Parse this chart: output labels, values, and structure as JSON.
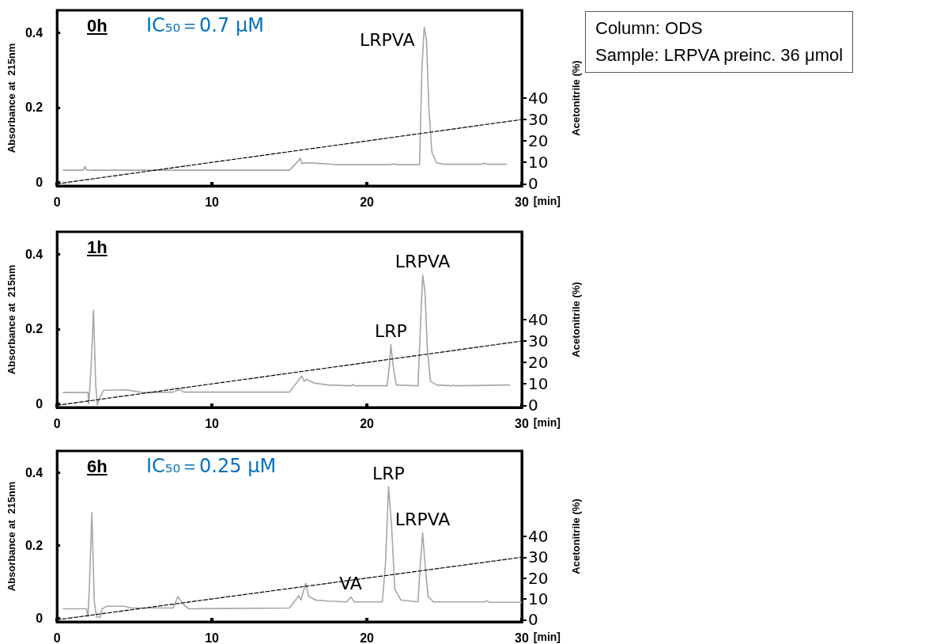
{
  "chart_data": [
    {
      "type": "line",
      "title": "0h",
      "ylabel": "Absorbance at  215nm",
      "y2label": "Acetonitrile (%)",
      "xlabel": "[min]",
      "xlim": [
        0,
        30
      ],
      "xticks": [
        0,
        10,
        20,
        30
      ],
      "ylim": [
        -0.01,
        0.46
      ],
      "yticks": [
        0,
        0.2,
        0.4
      ],
      "y2lim": [
        -1,
        81
      ],
      "y2ticks": [
        0,
        10,
        20,
        30,
        40
      ],
      "grid": false,
      "marker": "none",
      "series": [
        {
          "color": "#a6a6a6",
          "line_style": "solid",
          "x": [
            0.4,
            1.7,
            1.8,
            1.9,
            2.3,
            15.0,
            15.6,
            15.7,
            15.8,
            16.2,
            17,
            18,
            21.5,
            21.7,
            21.9,
            23.4,
            23.55,
            23.7,
            23.85,
            24.0,
            24.2,
            24.5,
            25,
            27.4,
            27.6,
            27.8,
            29.0
          ],
          "values": [
            0.032,
            0.032,
            0.042,
            0.033,
            0.032,
            0.032,
            0.058,
            0.064,
            0.05,
            0.052,
            0.05,
            0.047,
            0.047,
            0.049,
            0.047,
            0.047,
            0.3,
            0.415,
            0.38,
            0.2,
            0.08,
            0.052,
            0.048,
            0.048,
            0.051,
            0.048,
            0.048
          ]
        },
        {
          "color": "#000000",
          "line_style": "dashed",
          "axis": "y2",
          "x": [
            0,
            30
          ],
          "values": [
            0,
            30
          ]
        }
      ],
      "annotations": [
        {
          "text": "LRPVA",
          "x": 23.7,
          "y": 0.415
        },
        "IC₅₀＝0.7 μM"
      ]
    },
    {
      "type": "line",
      "title": "1h",
      "ylabel": "Absorbance at  215nm",
      "y2label": "Acetonitrile (%)",
      "xlabel": "[min]",
      "xlim": [
        0,
        30
      ],
      "xticks": [
        0,
        10,
        20,
        30
      ],
      "ylim": [
        -0.01,
        0.46
      ],
      "yticks": [
        0,
        0.2,
        0.4
      ],
      "y2lim": [
        -1,
        81
      ],
      "y2ticks": [
        0,
        10,
        20,
        30,
        40
      ],
      "grid": false,
      "marker": "none",
      "series": [
        {
          "color": "#a6a6a6",
          "line_style": "solid",
          "x": [
            0.4,
            2.0,
            2.05,
            2.2,
            2.35,
            2.5,
            2.6,
            2.8,
            3.0,
            4.5,
            5.5,
            7.5,
            7.9,
            8.2,
            15.0,
            15.8,
            15.95,
            16.1,
            16.6,
            17.5,
            19.0,
            19.1,
            19.2,
            21.3,
            21.45,
            21.55,
            21.7,
            21.9,
            23.3,
            23.45,
            23.6,
            23.75,
            23.9,
            24.1,
            24.5,
            25.5,
            25.6,
            25.7,
            29.2
          ],
          "values": [
            0.03,
            0.03,
            0.0,
            0.1,
            0.25,
            0.05,
            -0.003,
            0.02,
            0.036,
            0.037,
            0.03,
            0.031,
            0.038,
            0.031,
            0.031,
            0.074,
            0.06,
            0.065,
            0.055,
            0.05,
            0.048,
            0.052,
            0.048,
            0.048,
            0.1,
            0.158,
            0.1,
            0.05,
            0.048,
            0.2,
            0.345,
            0.3,
            0.15,
            0.06,
            0.05,
            0.048,
            0.05,
            0.048,
            0.05
          ]
        },
        {
          "color": "#000000",
          "line_style": "dashed",
          "axis": "y2",
          "x": [
            0,
            30
          ],
          "values": [
            0,
            30
          ]
        }
      ],
      "annotations": [
        {
          "text": "LRP",
          "x": 21.55,
          "y": 0.158
        },
        {
          "text": "LRPVA",
          "x": 23.6,
          "y": 0.345
        }
      ]
    },
    {
      "type": "line",
      "title": "6h",
      "ylabel": "Absorbance at  215nm",
      "y2label": "Acetonitrile (%)",
      "xlabel": "[min]",
      "xlim": [
        0,
        30
      ],
      "xticks": [
        0,
        10,
        20,
        30
      ],
      "ylim": [
        -0.01,
        0.46
      ],
      "yticks": [
        0,
        0.2,
        0.4
      ],
      "y2lim": [
        -1,
        81
      ],
      "y2ticks": [
        0,
        10,
        20,
        30,
        40
      ],
      "grid": false,
      "marker": "none",
      "series": [
        {
          "color": "#a6a6a6",
          "line_style": "solid",
          "x": [
            0.4,
            1.9,
            2.0,
            2.1,
            2.25,
            2.4,
            2.55,
            2.8,
            2.9,
            3.2,
            4.3,
            4.8,
            7.5,
            7.8,
            8.1,
            8.5,
            15.0,
            15.6,
            15.75,
            16.05,
            16.25,
            16.7,
            17.5,
            18.7,
            18.95,
            19.2,
            21.0,
            21.2,
            21.4,
            21.6,
            21.8,
            22.2,
            23.3,
            23.45,
            23.6,
            23.75,
            23.95,
            24.3,
            27.6,
            27.75,
            27.9,
            30
          ],
          "values": [
            0.026,
            0.026,
            0.005,
            0.1,
            0.29,
            0.05,
            0.003,
            0.003,
            0.025,
            0.033,
            0.033,
            0.028,
            0.028,
            0.06,
            0.04,
            0.026,
            0.028,
            0.062,
            0.05,
            0.096,
            0.06,
            0.05,
            0.047,
            0.045,
            0.058,
            0.045,
            0.045,
            0.15,
            0.362,
            0.25,
            0.08,
            0.05,
            0.045,
            0.15,
            0.235,
            0.15,
            0.06,
            0.045,
            0.045,
            0.048,
            0.044,
            0.044
          ]
        },
        {
          "color": "#000000",
          "line_style": "dashed",
          "axis": "y2",
          "x": [
            0,
            30
          ],
          "values": [
            0,
            30
          ]
        }
      ],
      "annotations": [
        {
          "text": "VA",
          "x": 18.95,
          "y": 0.058
        },
        {
          "text": "LRP",
          "x": 21.4,
          "y": 0.362
        },
        {
          "text": "LRPVA",
          "x": 23.6,
          "y": 0.235
        },
        "IC₅₀＝0.25 μM"
      ]
    },
    {
      "type": "other",
      "annotations": [
        "Column: ODS",
        "Sample: LRPVA preinc. 36 μmol"
      ]
    }
  ]
}
